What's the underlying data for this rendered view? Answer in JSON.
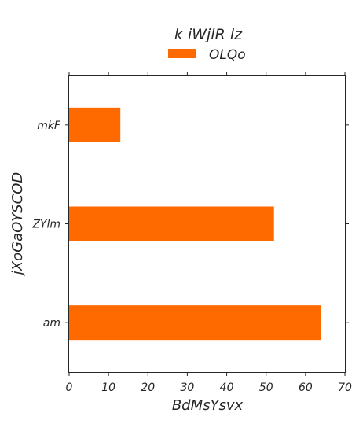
{
  "chart_data": {
    "type": "bar",
    "orientation": "horizontal",
    "legend": {
      "title": "k iWjlR lz",
      "placement": "top-center"
    },
    "categories": [
      "am",
      "ZYlm",
      "mkF"
    ],
    "series": [
      {
        "name": "OLQo",
        "values": [
          64,
          52,
          13
        ],
        "color": "#ff6a00"
      }
    ],
    "xlabel": "BdMsYsvx",
    "ylabel": "jXoGaOYSCOD",
    "xlim": [
      0,
      70
    ],
    "xticks": [
      0,
      10,
      20,
      30,
      40,
      50,
      60,
      70
    ],
    "grid": false
  }
}
